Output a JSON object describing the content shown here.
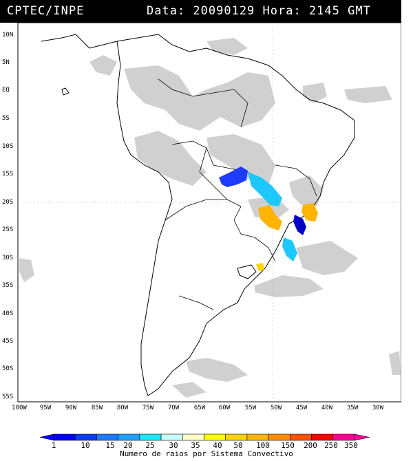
{
  "header": {
    "source": "CPTEC/INPE",
    "datetime": "Data: 20090129 Hora: 2145 GMT"
  },
  "axes": {
    "lat_labels": [
      "10N",
      "5N",
      "EQ",
      "5S",
      "10S",
      "15S",
      "20S",
      "25S",
      "30S",
      "35S",
      "40S",
      "45S",
      "50S",
      "55S"
    ],
    "lon_labels": [
      "100W",
      "95W",
      "90W",
      "85W",
      "80W",
      "75W",
      "70W",
      "65W",
      "60W",
      "55W",
      "50W",
      "45W",
      "40W",
      "35W",
      "30W"
    ]
  },
  "colorbar": {
    "title": "Numero de raios por Sistema Convectivo",
    "values": [
      "1",
      "10",
      "15",
      "20",
      "25",
      "30",
      "35",
      "40",
      "50",
      "100",
      "150",
      "200",
      "250",
      "350"
    ],
    "colors": [
      "#0000ff",
      "#0a3cf0",
      "#1e78ff",
      "#1ea0ff",
      "#1ee6ff",
      "#c8ffff",
      "#ffffc8",
      "#ffff00",
      "#ffd200",
      "#ffb400",
      "#ff8c00",
      "#ff5000",
      "#ff0000",
      "#ff0096"
    ]
  },
  "map": {
    "background": "#ffffff",
    "cloud_color": "#c8c8c8",
    "systems": [
      {
        "name": "system-blue-central-brazil",
        "color": "#1e3cff"
      },
      {
        "name": "system-cyan-central-brazil",
        "color": "#1ec8ff"
      },
      {
        "name": "system-orange-parana",
        "color": "#ffb400"
      },
      {
        "name": "system-orange-southeast",
        "color": "#ffb400"
      },
      {
        "name": "system-navy-sao-paulo",
        "color": "#0000c8"
      },
      {
        "name": "system-cyan-south",
        "color": "#1ec8ff"
      },
      {
        "name": "system-yellow-uruguay",
        "color": "#ffd200"
      }
    ]
  }
}
